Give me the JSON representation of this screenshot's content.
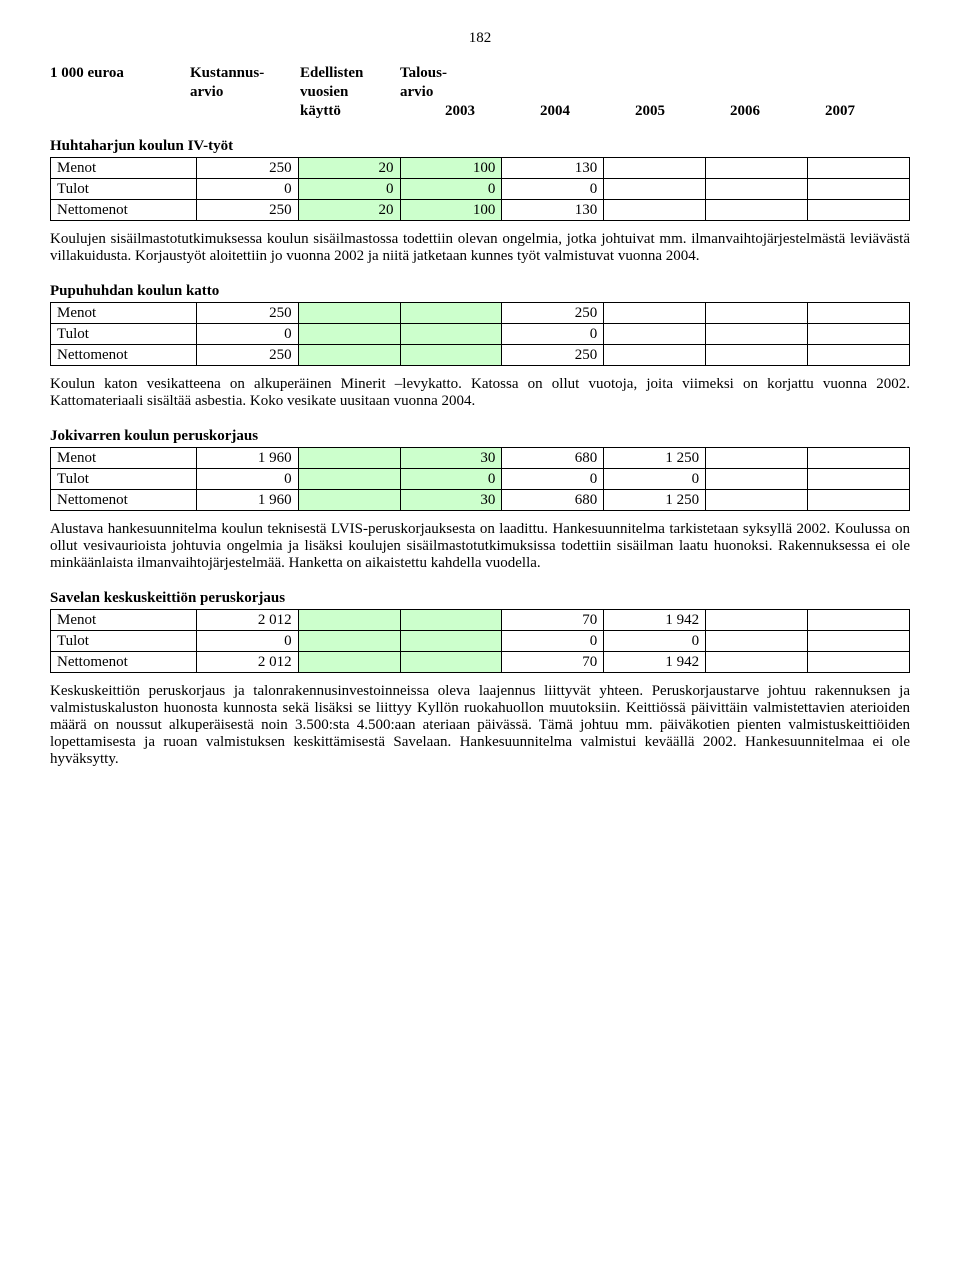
{
  "page_number": "182",
  "header": {
    "col1": "1 000 euroa",
    "col2a": "Kustannus-",
    "col2b": "arvio",
    "col3a": "Edellisten",
    "col3b": "vuosien",
    "col3c": "käyttö",
    "col4a": "Talous-",
    "col4b": "arvio",
    "years": [
      "2003",
      "2004",
      "2005",
      "2006",
      "2007"
    ]
  },
  "labels": {
    "menot": "Menot",
    "tulot": "Tulot",
    "nettomenot": "Nettomenot"
  },
  "sections": {
    "huhtaharju": {
      "title": "Huhtaharjun koulun IV-työt",
      "rows": [
        [
          "250",
          "20",
          "100",
          "130",
          "",
          "",
          ""
        ],
        [
          "0",
          "0",
          "0",
          "0",
          "",
          "",
          ""
        ],
        [
          "250",
          "20",
          "100",
          "130",
          "",
          "",
          ""
        ]
      ],
      "text": "Koulujen sisäilmastotutkimuksessa koulun sisäilmastossa todettiin olevan ongelmia, jotka johtuivat mm. ilmanvaihtojärjestelmästä leviävästä villakuidusta. Korjaustyöt aloitettiin jo vuonna 2002 ja niitä jatketaan kunnes työt valmistuvat vuonna 2004."
    },
    "pupuhuhdan": {
      "title": "Pupuhuhdan koulun katto",
      "rows": [
        [
          "250",
          "",
          "",
          "250",
          "",
          "",
          ""
        ],
        [
          "0",
          "",
          "",
          "0",
          "",
          "",
          ""
        ],
        [
          "250",
          "",
          "",
          "250",
          "",
          "",
          ""
        ]
      ],
      "text": "Koulun katon vesikatteena on alkuperäinen Minerit –levykatto. Katossa on ollut vuotoja, joita viimeksi on korjattu vuonna 2002. Kattomateriaali sisältää asbestia. Koko vesikate uusitaan vuonna 2004."
    },
    "jokivarren": {
      "title": "Jokivarren koulun peruskorjaus",
      "rows": [
        [
          "1 960",
          "",
          "30",
          "680",
          "1 250",
          "",
          ""
        ],
        [
          "0",
          "",
          "0",
          "0",
          "0",
          "",
          ""
        ],
        [
          "1 960",
          "",
          "30",
          "680",
          "1 250",
          "",
          ""
        ]
      ],
      "text": "Alustava hankesuunnitelma koulun teknisestä LVIS-peruskorjauksesta on laadittu. Hankesuunnitelma tarkistetaan syksyllä 2002. Koulussa on ollut vesivaurioista johtuvia ongelmia ja lisäksi koulujen sisäilmastotutkimuksissa todettiin sisäilman laatu huonoksi. Rakennuksessa ei ole minkäänlaista ilmanvaihtojärjestelmää. Hanketta on aikaistettu kahdella vuodella."
    },
    "savelan": {
      "title": "Savelan keskuskeittiön peruskorjaus",
      "rows": [
        [
          "2 012",
          "",
          "",
          "70",
          "1 942",
          "",
          ""
        ],
        [
          "0",
          "",
          "",
          "0",
          "0",
          "",
          ""
        ],
        [
          "2 012",
          "",
          "",
          "70",
          "1 942",
          "",
          ""
        ]
      ],
      "text": "Keskuskeittiön peruskorjaus ja talonrakennusinvestoinneissa oleva laajennus liittyvät yhteen. Peruskorjaustarve johtuu rakennuksen ja valmistuskaluston huonosta kunnosta sekä lisäksi se liittyy Kyllön ruokahuollon muutoksiin. Keittiössä päivittäin valmistettavien aterioiden määrä on noussut alkuperäisestä noin 3.500:sta 4.500:aan ateriaan päivässä. Tämä johtuu mm. päiväkotien pienten valmistuskeittiöiden lopettamisesta ja ruoan valmistuksen keskittämisestä Savelaan. Hankesuunnitelma valmistui keväällä 2002. Hankesuunnitelmaa ei ole hyväksytty."
    }
  },
  "style": {
    "green": "#ccffcc",
    "border": "#000000",
    "font": "Times New Roman",
    "green_cols": [
      2,
      3
    ]
  }
}
